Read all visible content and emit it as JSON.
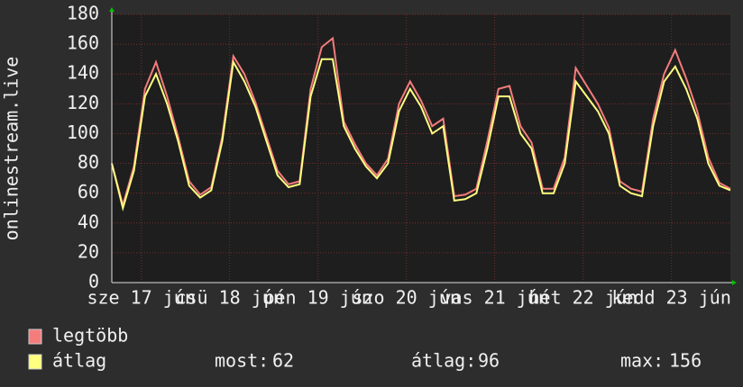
{
  "chart_data": {
    "type": "line",
    "y_axis_label": "onlinestream.live",
    "x": [
      0,
      3,
      6,
      9,
      12,
      15,
      18,
      21,
      24,
      27,
      30,
      33,
      36,
      39,
      42,
      45,
      48,
      51,
      54,
      57,
      60,
      63,
      66,
      69,
      72,
      75,
      78,
      81,
      84,
      87,
      90,
      93,
      96,
      99,
      102,
      105,
      108,
      111,
      114,
      117,
      120,
      123,
      126,
      129,
      132,
      135,
      138,
      141,
      144,
      147,
      150,
      153,
      156,
      159,
      162,
      165,
      168
    ],
    "xlim": [
      0,
      168
    ],
    "xticks": [
      {
        "value": 8,
        "label": "sze 17 jún"
      },
      {
        "value": 32,
        "label": "csü 18 jún"
      },
      {
        "value": 56,
        "label": "pén 19 jún"
      },
      {
        "value": 80,
        "label": "szo 20 jún"
      },
      {
        "value": 104,
        "label": "vas 21 jún"
      },
      {
        "value": 128,
        "label": "hét 22 jún"
      },
      {
        "value": 152,
        "label": "kedd 23 jún"
      }
    ],
    "ylim": [
      0,
      180
    ],
    "yticks": [
      0,
      20,
      40,
      60,
      80,
      100,
      120,
      140,
      160,
      180
    ],
    "grid": true,
    "series": [
      {
        "name": "legtöbb",
        "color": "#f47c7c",
        "values": [
          80,
          52,
          78,
          130,
          148,
          125,
          98,
          68,
          59,
          64,
          98,
          152,
          140,
          121,
          98,
          75,
          66,
          68,
          130,
          158,
          164,
          108,
          93,
          80,
          72,
          83,
          120,
          135,
          122,
          105,
          110,
          58,
          59,
          63,
          95,
          130,
          132,
          105,
          94,
          63,
          63,
          84,
          144,
          132,
          120,
          104,
          68,
          63,
          61,
          110,
          140,
          156,
          137,
          115,
          84,
          67,
          63
        ]
      },
      {
        "name": "átlag",
        "color": "#ffff80",
        "values": [
          80,
          50,
          75,
          125,
          140,
          120,
          95,
          65,
          57,
          62,
          95,
          148,
          135,
          118,
          95,
          72,
          64,
          66,
          125,
          150,
          150,
          105,
          90,
          78,
          70,
          80,
          115,
          130,
          118,
          100,
          105,
          55,
          56,
          60,
          90,
          125,
          125,
          100,
          90,
          60,
          60,
          80,
          135,
          125,
          115,
          100,
          65,
          60,
          58,
          105,
          135,
          145,
          130,
          110,
          80,
          65,
          62
        ]
      }
    ],
    "stats": [
      {
        "label": "most:",
        "value": 62
      },
      {
        "label": "átlag:",
        "value": 96
      },
      {
        "label": "max:",
        "value": 156
      }
    ]
  }
}
